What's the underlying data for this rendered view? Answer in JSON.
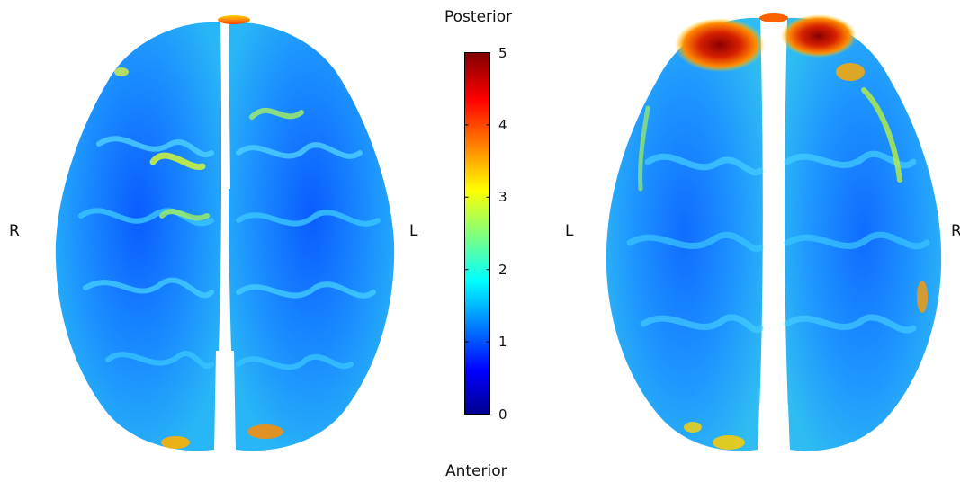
{
  "orientation": {
    "top": "Posterior",
    "bottom": "Anterior"
  },
  "left_view": {
    "left_label": "R",
    "right_label": "L"
  },
  "right_view": {
    "left_label": "L",
    "right_label": "R"
  },
  "colorbar": {
    "colormap": "jet",
    "min": 0,
    "max": 5,
    "ticks": [
      "0",
      "1",
      "2",
      "3",
      "4",
      "5"
    ]
  }
}
